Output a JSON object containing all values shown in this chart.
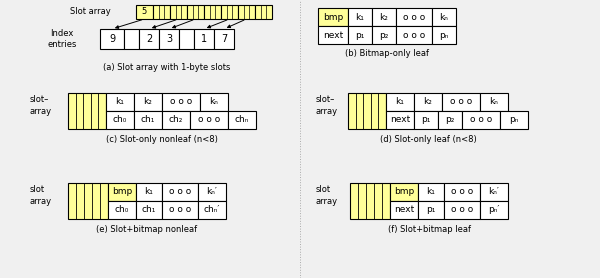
{
  "fig_width": 6.0,
  "fig_height": 2.78,
  "dpi": 100,
  "bg_color": "#f0f0f0",
  "yellow": "#ffff99",
  "white": "#ffffff",
  "diagrams": {
    "a_label": "(a) Slot array with 1-byte slots",
    "b_label": "(b) Bitmap-only leaf",
    "c_label": "(c) Slot-only nonleaf (n<8)",
    "d_label": "(d) Slot-only leaf (n<8)",
    "e_label": "(e) Slot+bitmap nonleaf",
    "f_label": "(f) Slot+bitmap leaf"
  }
}
